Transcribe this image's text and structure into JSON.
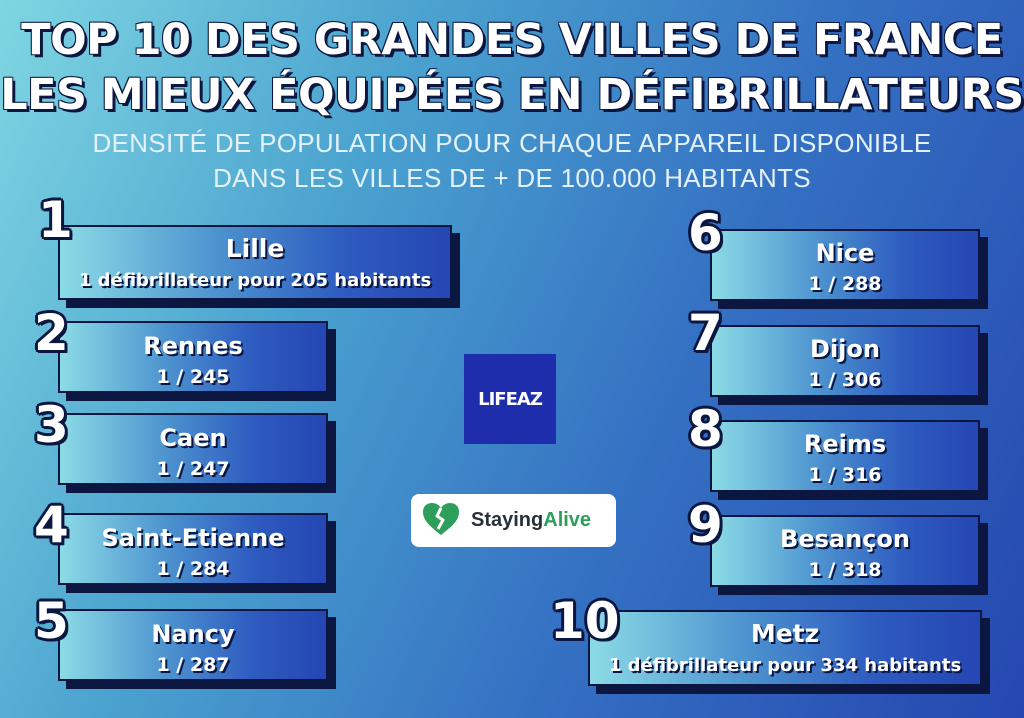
{
  "title_line1": "TOP 10 DES GRANDES VILLES DE FRANCE",
  "title_line2": "LES MIEUX ÉQUIPÉES EN DÉFIBRILLATEURS",
  "subtitle_line1": "DENSITÉ DE POPULATION POUR CHAQUE APPAREIL DISPONIBLE",
  "subtitle_line2": "DANS LES VILLES DE + DE 100.000 HABITANTS",
  "ranking": [
    {
      "rank": "1",
      "city": "Lille",
      "ratio": "1 défibrillateur pour 205 habitants"
    },
    {
      "rank": "2",
      "city": "Rennes",
      "ratio": "1 / 245"
    },
    {
      "rank": "3",
      "city": "Caen",
      "ratio": "1 / 247"
    },
    {
      "rank": "4",
      "city": "Saint-Etienne",
      "ratio": "1 / 284"
    },
    {
      "rank": "5",
      "city": "Nancy",
      "ratio": "1 / 287"
    },
    {
      "rank": "6",
      "city": "Nice",
      "ratio": "1 / 288"
    },
    {
      "rank": "7",
      "city": "Dijon",
      "ratio": "1 / 306"
    },
    {
      "rank": "8",
      "city": "Reims",
      "ratio": "1 / 316"
    },
    {
      "rank": "9",
      "city": "Besançon",
      "ratio": "1 / 318"
    },
    {
      "rank": "10",
      "city": "Metz",
      "ratio": "1 défibrillateur pour 334 habitants"
    }
  ],
  "logos": {
    "lifeaz": "LIFEAZ",
    "staying_alive_word1": "Staying",
    "staying_alive_word2": "Alive",
    "heart_icon": "broken-heart-icon"
  },
  "colors": {
    "background_light": "#7fd6e2",
    "background_dark": "#2547b0",
    "outline": "#0b1740",
    "staying_alive_green": "#2e9e5b"
  }
}
